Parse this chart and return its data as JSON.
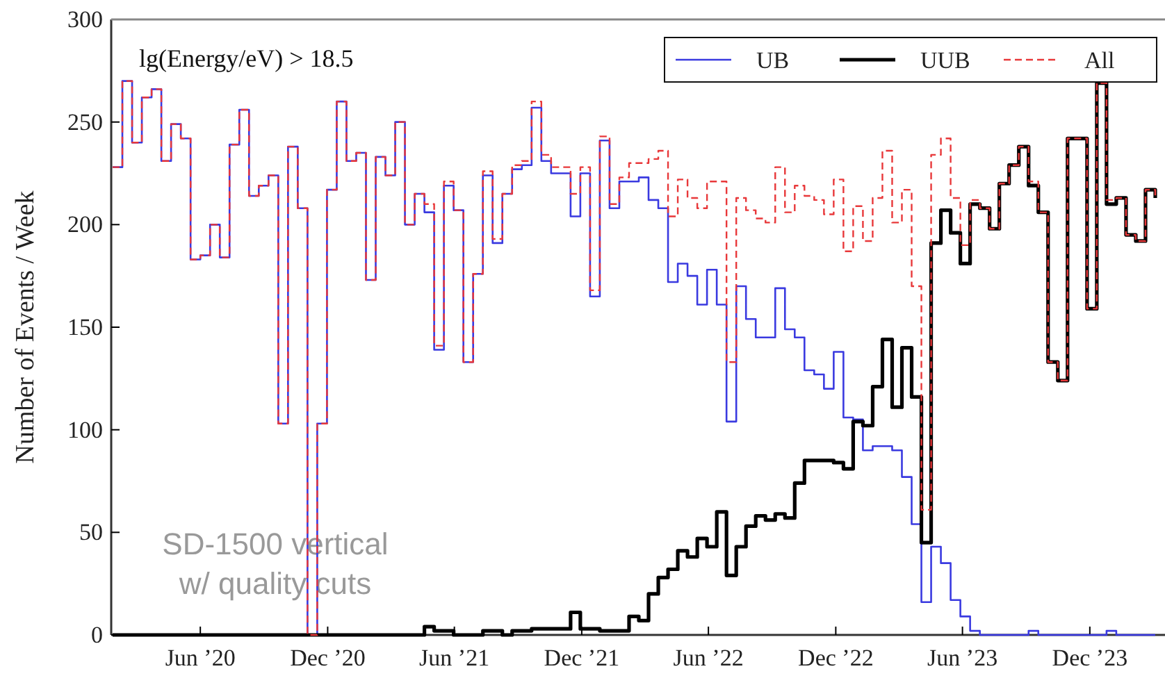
{
  "chart_data": {
    "type": "step",
    "ylabel": "Number of Events / Week",
    "annotations": [
      "lg(Energy/eV) > 18.5",
      "SD-1500 vertical\nw/ quality cuts"
    ],
    "x": [
      "2020-01-27",
      "2020-02-10",
      "2020-02-24",
      "2020-03-09",
      "2020-03-23",
      "2020-04-06",
      "2020-04-20",
      "2020-05-04",
      "2020-05-18",
      "2020-06-01",
      "2020-06-15",
      "2020-06-29",
      "2020-07-13",
      "2020-07-27",
      "2020-08-10",
      "2020-08-24",
      "2020-09-07",
      "2020-09-21",
      "2020-10-05",
      "2020-10-19",
      "2020-11-02",
      "2020-11-16",
      "2020-11-30",
      "2020-12-14",
      "2020-12-28",
      "2021-01-11",
      "2021-01-25",
      "2021-02-08",
      "2021-02-22",
      "2021-03-08",
      "2021-03-22",
      "2021-04-05",
      "2021-04-19",
      "2021-05-03",
      "2021-05-17",
      "2021-05-31",
      "2021-06-14",
      "2021-06-28",
      "2021-07-12",
      "2021-07-26",
      "2021-08-09",
      "2021-08-23",
      "2021-09-06",
      "2021-09-20",
      "2021-10-04",
      "2021-10-18",
      "2021-11-01",
      "2021-11-15",
      "2021-11-29",
      "2021-12-13",
      "2021-12-27",
      "2022-01-10",
      "2022-01-24",
      "2022-02-07",
      "2022-02-21",
      "2022-03-07",
      "2022-03-21",
      "2022-04-04",
      "2022-04-18",
      "2022-05-02",
      "2022-05-16",
      "2022-05-30",
      "2022-06-13",
      "2022-06-27",
      "2022-07-11",
      "2022-07-25",
      "2022-08-08",
      "2022-08-22",
      "2022-09-05",
      "2022-09-19",
      "2022-10-03",
      "2022-10-17",
      "2022-10-31",
      "2022-11-14",
      "2022-11-28",
      "2022-12-12",
      "2022-12-26",
      "2023-01-09",
      "2023-01-23",
      "2023-02-06",
      "2023-02-20",
      "2023-03-06",
      "2023-03-20",
      "2023-04-03",
      "2023-04-17",
      "2023-05-01",
      "2023-05-15",
      "2023-05-29",
      "2023-06-12",
      "2023-06-26",
      "2023-07-10",
      "2023-07-24",
      "2023-08-07",
      "2023-08-21",
      "2023-09-04",
      "2023-09-18",
      "2023-10-02",
      "2023-10-16",
      "2023-10-30",
      "2023-11-13",
      "2023-11-27",
      "2023-12-11",
      "2023-12-25",
      "2024-01-08",
      "2024-01-22",
      "2024-02-05",
      "2024-02-19",
      "2024-03-04"
    ],
    "series": [
      {
        "name": "UB",
        "color": "#3a3ae0",
        "line_style": "solid",
        "values": [
          228,
          270,
          240,
          262,
          266,
          231,
          249,
          242,
          183,
          185,
          200,
          184,
          239,
          256,
          214,
          219,
          224,
          103,
          238,
          208,
          0,
          103,
          217,
          260,
          231,
          235,
          173,
          233,
          224,
          250,
          200,
          215,
          206,
          139,
          219,
          207,
          133,
          176,
          224,
          191,
          215,
          227,
          229,
          257,
          231,
          225,
          225,
          204,
          225,
          165,
          241,
          208,
          221,
          221,
          223,
          212,
          208,
          172,
          181,
          175,
          161,
          178,
          161,
          104,
          170,
          154,
          145,
          145,
          169,
          149,
          145,
          129,
          127,
          120,
          138,
          106,
          105,
          90,
          92,
          92,
          90,
          77,
          54,
          16,
          43,
          35,
          17,
          9,
          2,
          0,
          0,
          0,
          0,
          0,
          2,
          0,
          0,
          0,
          0,
          0,
          0,
          0,
          2,
          0,
          0,
          0,
          0,
          0
        ]
      },
      {
        "name": "UUB",
        "color": "#000000",
        "line_style": "solid",
        "values": [
          0,
          0,
          0,
          0,
          0,
          0,
          0,
          0,
          0,
          0,
          0,
          0,
          0,
          0,
          0,
          0,
          0,
          0,
          0,
          0,
          0,
          0,
          0,
          0,
          0,
          0,
          0,
          0,
          0,
          0,
          0,
          0,
          4,
          2,
          2,
          0,
          0,
          0,
          2,
          2,
          0,
          2,
          2,
          3,
          3,
          3,
          3,
          11,
          3,
          3,
          2,
          2,
          2,
          9,
          7,
          20,
          28,
          32,
          41,
          38,
          47,
          43,
          60,
          29,
          43,
          53,
          58,
          56,
          59,
          57,
          74,
          85,
          85,
          85,
          84,
          81,
          104,
          102,
          121,
          144,
          111,
          140,
          116,
          45,
          191,
          207,
          196,
          181,
          210,
          208,
          198,
          220,
          229,
          238,
          219,
          206,
          133,
          124,
          242,
          242,
          159,
          269,
          210,
          213,
          195,
          192,
          217,
          213
        ]
      },
      {
        "name": "All",
        "color": "#e8383a",
        "line_style": "dashed",
        "values": [
          228,
          270,
          240,
          262,
          266,
          231,
          249,
          242,
          183,
          185,
          200,
          184,
          239,
          256,
          214,
          219,
          224,
          103,
          238,
          208,
          0,
          103,
          217,
          260,
          231,
          235,
          173,
          233,
          224,
          250,
          200,
          215,
          210,
          141,
          221,
          207,
          133,
          176,
          226,
          193,
          215,
          229,
          231,
          260,
          234,
          228,
          228,
          215,
          228,
          168,
          243,
          210,
          223,
          230,
          230,
          232,
          236,
          204,
          222,
          213,
          208,
          221,
          221,
          133,
          213,
          207,
          203,
          201,
          228,
          206,
          219,
          214,
          212,
          205,
          222,
          187,
          209,
          192,
          213,
          236,
          201,
          217,
          170,
          61,
          234,
          242,
          213,
          190,
          212,
          208,
          198,
          220,
          229,
          238,
          221,
          206,
          133,
          124,
          242,
          242,
          159,
          269,
          212,
          213,
          195,
          192,
          217,
          213
        ]
      }
    ],
    "xlim": [
      "2020-01-25",
      "2024-03-18"
    ],
    "xticks": [
      {
        "value": "2020-06-01",
        "label": "Jun ’20"
      },
      {
        "value": "2020-12-01",
        "label": "Dec ’20"
      },
      {
        "value": "2021-06-01",
        "label": "Jun ’21"
      },
      {
        "value": "2021-12-01",
        "label": "Dec ’21"
      },
      {
        "value": "2022-06-01",
        "label": "Jun ’22"
      },
      {
        "value": "2022-12-01",
        "label": "Dec ’22"
      },
      {
        "value": "2023-06-01",
        "label": "Jun ’23"
      },
      {
        "value": "2023-12-01",
        "label": "Dec ’23"
      }
    ],
    "ylim": [
      0,
      300
    ],
    "yticks": [
      0,
      50,
      100,
      150,
      200,
      250,
      300
    ],
    "legend": "top right",
    "grid": false
  }
}
